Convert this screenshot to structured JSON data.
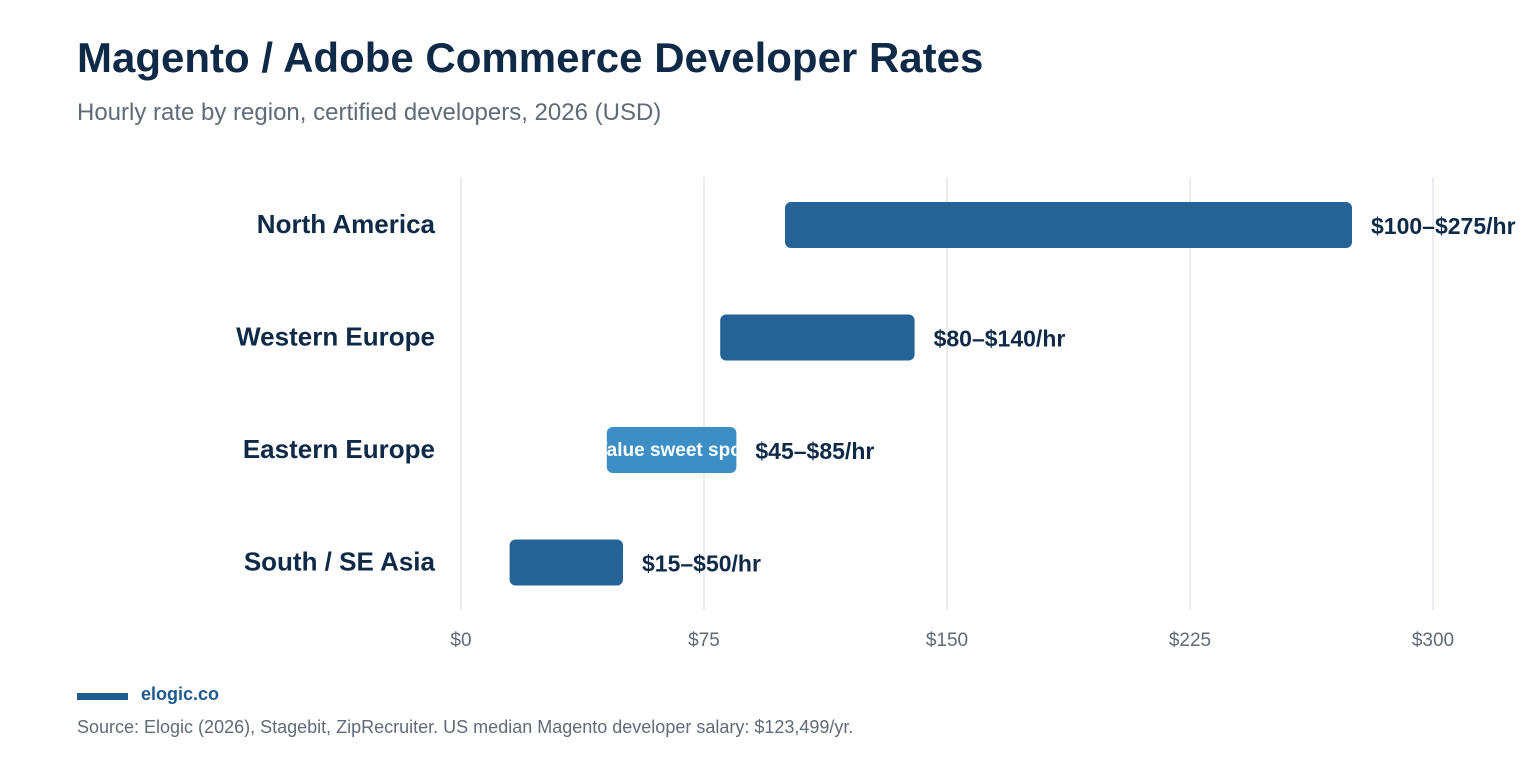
{
  "header": {
    "title": "Magento / Adobe Commerce Developer Rates",
    "subtitle": "Hourly rate by region, certified developers, 2026 (USD)"
  },
  "footer": {
    "brand": "elogic.co",
    "source": "Source: Elogic (2026), Stagebit, ZipRecruiter. US median Magento developer salary: $123,499/yr."
  },
  "colors": {
    "bar": "#256396",
    "bar_highlight": "#3d8ec5",
    "title": "#0f2a47",
    "muted": "#5f6b77",
    "grid": "#e3e6ea",
    "brand": "#1e5a8c"
  },
  "chart_data": {
    "type": "bar",
    "orientation": "horizontal",
    "subtype": "floating-range",
    "categories": [
      "North America",
      "Western Europe",
      "Eastern Europe",
      "South / SE Asia"
    ],
    "series": [
      {
        "ranges": [
          [
            100,
            275
          ],
          [
            80,
            140
          ],
          [
            45,
            85
          ],
          [
            15,
            50
          ]
        ],
        "labels": [
          "$100–$275/hr",
          "$80–$140/hr",
          "$45–$85/hr",
          "$15–$50/hr"
        ],
        "highlight": [
          false,
          false,
          true,
          false
        ],
        "inner_labels": [
          "",
          "",
          "Value sweet spot",
          ""
        ]
      }
    ],
    "xlim": [
      0,
      300
    ],
    "xticks": [
      0,
      75,
      150,
      225,
      300
    ],
    "xtick_labels": [
      "$0",
      "$75",
      "$150",
      "$225",
      "$300"
    ],
    "grid": "vertical",
    "legend": "none"
  }
}
